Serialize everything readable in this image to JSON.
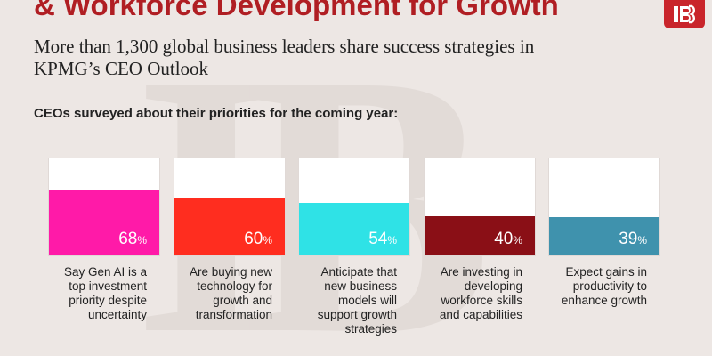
{
  "header": {
    "title": "& Workforce Development for Growth",
    "subtitle": "More than 1,300 global business leaders share success strategies in KPMG’s CEO Outlook",
    "question": "CEOs surveyed about their priorities for the coming year:"
  },
  "logo": {
    "icon": "brand-logo-icon",
    "color": "#c9252b"
  },
  "chart_data": {
    "type": "bar",
    "title": "CEOs surveyed about their priorities for the coming year:",
    "unit": "%",
    "ylim": [
      0,
      100
    ],
    "grid": false,
    "legend": "none",
    "categories": [
      "Say Gen AI is a top investment priority despite uncertainty",
      "Are buying new technology for growth and transformation",
      "Anticipate that new business models will support growth strategies",
      "Are investing in developing workforce skills and capabilities",
      "Expect gains in productivity to enhance growth"
    ],
    "values": [
      68,
      60,
      54,
      40,
      39
    ],
    "value_labels": [
      "68",
      "60",
      "54",
      "40",
      "39"
    ],
    "colors": [
      "#ff1aa8",
      "#ff2d1f",
      "#2fe2e6",
      "#8a0f16",
      "#3f92ad"
    ]
  }
}
